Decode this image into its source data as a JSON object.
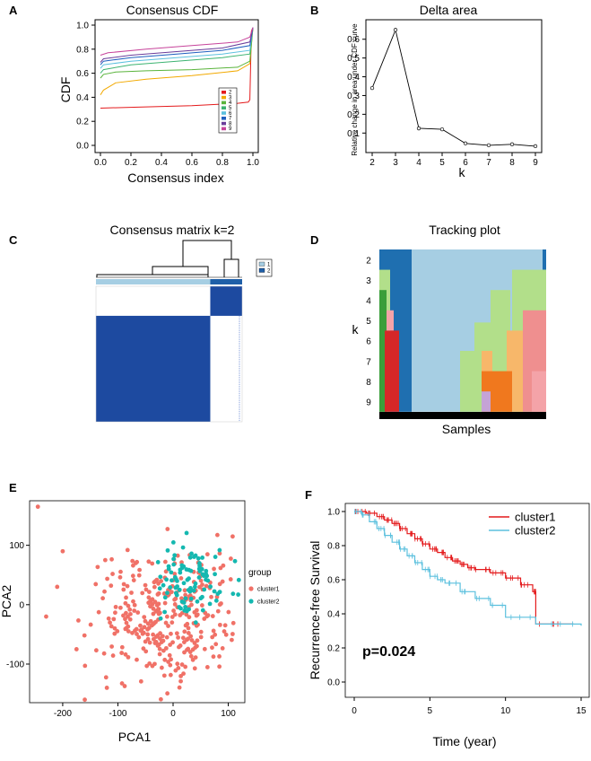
{
  "panels": {
    "A": {
      "letter": "A"
    },
    "B": {
      "letter": "B"
    },
    "C": {
      "letter": "C"
    },
    "D": {
      "letter": "D"
    },
    "E": {
      "letter": "E"
    },
    "F": {
      "letter": "F"
    }
  },
  "chart_data": [
    {
      "panel": "A",
      "type": "line",
      "title": "Consensus CDF",
      "xlabel": "Consensus index",
      "ylabel": "CDF",
      "xlim": [
        0,
        1
      ],
      "ylim": [
        0,
        1
      ],
      "xticks": [
        "0.0",
        "0.2",
        "0.4",
        "0.6",
        "0.8",
        "1.0"
      ],
      "yticks": [
        "0.0",
        "0.2",
        "0.4",
        "0.6",
        "0.8",
        "1.0"
      ],
      "legend_position": "center-right",
      "series": [
        {
          "name": "2",
          "color": "#e41a1c",
          "x": [
            0,
            0.3,
            0.6,
            0.9,
            0.97,
            0.98,
            0.99,
            1.0
          ],
          "y": [
            0.31,
            0.32,
            0.33,
            0.35,
            0.36,
            0.38,
            0.95,
            0.98
          ]
        },
        {
          "name": "3",
          "color": "#f2a900",
          "x": [
            0,
            0.02,
            0.1,
            0.3,
            0.6,
            0.9,
            0.98,
            1.0
          ],
          "y": [
            0.42,
            0.46,
            0.52,
            0.55,
            0.58,
            0.62,
            0.68,
            0.98
          ]
        },
        {
          "name": "4",
          "color": "#5ab43c",
          "x": [
            0,
            0.02,
            0.1,
            0.3,
            0.6,
            0.9,
            0.98,
            1.0
          ],
          "y": [
            0.56,
            0.59,
            0.61,
            0.62,
            0.63,
            0.65,
            0.7,
            0.98
          ]
        },
        {
          "name": "5",
          "color": "#3cb371",
          "x": [
            0,
            0.02,
            0.2,
            0.5,
            0.8,
            0.98,
            1.0
          ],
          "y": [
            0.6,
            0.63,
            0.67,
            0.7,
            0.73,
            0.76,
            0.98
          ]
        },
        {
          "name": "6",
          "color": "#5bc0de",
          "x": [
            0,
            0.02,
            0.2,
            0.5,
            0.8,
            0.98,
            1.0
          ],
          "y": [
            0.64,
            0.67,
            0.7,
            0.73,
            0.76,
            0.79,
            0.98
          ]
        },
        {
          "name": "7",
          "color": "#1f5fbf",
          "x": [
            0,
            0.02,
            0.2,
            0.5,
            0.8,
            0.98,
            1.0
          ],
          "y": [
            0.67,
            0.7,
            0.73,
            0.76,
            0.79,
            0.83,
            0.98
          ]
        },
        {
          "name": "8",
          "color": "#6a3d9a",
          "x": [
            0,
            0.02,
            0.2,
            0.5,
            0.8,
            0.98,
            1.0
          ],
          "y": [
            0.69,
            0.72,
            0.75,
            0.78,
            0.81,
            0.86,
            0.98
          ]
        },
        {
          "name": "9",
          "color": "#c7449b",
          "x": [
            0,
            0.05,
            0.3,
            0.6,
            0.9,
            0.98,
            1.0
          ],
          "y": [
            0.75,
            0.77,
            0.8,
            0.83,
            0.86,
            0.9,
            0.98
          ]
        }
      ]
    },
    {
      "panel": "B",
      "type": "line",
      "title": "Delta area",
      "xlabel": "k",
      "ylabel": "Relative change in area under CDF curve",
      "xlim": [
        2,
        9
      ],
      "ylim": [
        0.02,
        0.68
      ],
      "xticks": [
        "2",
        "3",
        "4",
        "5",
        "6",
        "7",
        "8",
        "9"
      ],
      "yticks": [
        "0.1",
        "0.2",
        "0.3",
        "0.4",
        "0.5",
        "0.6"
      ],
      "x": [
        2,
        3,
        4,
        5,
        6,
        7,
        8,
        9
      ],
      "y": [
        0.34,
        0.65,
        0.125,
        0.12,
        0.045,
        0.035,
        0.04,
        0.03
      ]
    },
    {
      "panel": "C",
      "type": "heatmap",
      "title": "Consensus matrix k=2",
      "legend": [
        {
          "label": "1",
          "color": "#a6cee3"
        },
        {
          "label": "2",
          "color": "#1f5fa8"
        }
      ],
      "cluster_fraction": [
        0.782,
        0.218
      ]
    },
    {
      "panel": "D",
      "type": "heatmap",
      "title": "Tracking plot",
      "xlabel": "Samples",
      "ylabel": "k",
      "k_labels": [
        "2",
        "3",
        "4",
        "5",
        "6",
        "7",
        "8",
        "9"
      ]
    },
    {
      "panel": "E",
      "type": "scatter",
      "xlabel": "PCA1",
      "ylabel": "PCA2",
      "xlim": [
        -260,
        130
      ],
      "ylim": [
        -165,
        175
      ],
      "xticks": [
        "-200",
        "-100",
        "0",
        "100"
      ],
      "yticks": [
        "-100",
        "0",
        "100"
      ],
      "legend_title": "group",
      "series": [
        {
          "name": "cluster1",
          "color": "#f07167"
        },
        {
          "name": "cluster2",
          "color": "#14b8b0"
        }
      ]
    },
    {
      "panel": "F",
      "type": "line",
      "xlabel": "Time (year)",
      "ylabel": "Recurrence-free Survival",
      "xlim": [
        0,
        15
      ],
      "ylim": [
        0,
        1
      ],
      "xticks": [
        "0",
        "5",
        "10",
        "15"
      ],
      "yticks": [
        "0.0",
        "0.2",
        "0.4",
        "0.6",
        "0.8",
        "1.0"
      ],
      "annotation": "p=0.024",
      "series": [
        {
          "name": "cluster1",
          "color": "#e41a1c",
          "x": [
            0,
            0.8,
            1.5,
            2,
            2.5,
            3,
            3.5,
            4,
            4.5,
            5,
            5.5,
            6,
            6.5,
            7,
            7.5,
            8,
            9,
            10,
            11,
            11.8,
            12,
            14.5
          ],
          "y": [
            1.0,
            0.99,
            0.97,
            0.95,
            0.93,
            0.9,
            0.87,
            0.84,
            0.81,
            0.78,
            0.76,
            0.73,
            0.71,
            0.69,
            0.67,
            0.66,
            0.64,
            0.61,
            0.57,
            0.53,
            0.34,
            0.34
          ]
        },
        {
          "name": "cluster2",
          "color": "#5bc0de",
          "x": [
            0,
            0.5,
            1,
            1.5,
            2,
            2.5,
            3,
            3.5,
            4,
            4.5,
            5,
            5.5,
            6,
            7,
            8,
            9,
            10,
            12,
            15
          ],
          "y": [
            1.0,
            0.98,
            0.94,
            0.9,
            0.86,
            0.82,
            0.78,
            0.74,
            0.7,
            0.66,
            0.62,
            0.6,
            0.58,
            0.53,
            0.49,
            0.45,
            0.38,
            0.34,
            0.33
          ]
        }
      ]
    }
  ]
}
